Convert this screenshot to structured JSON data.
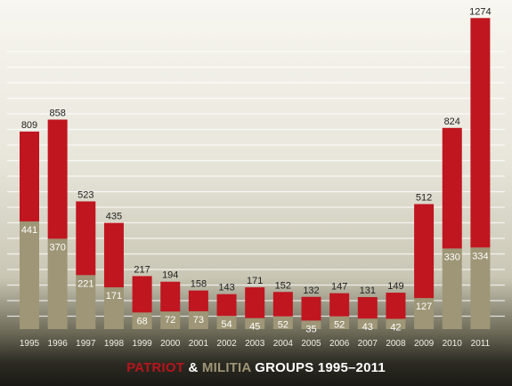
{
  "chart_data": {
    "type": "bar",
    "stacked": true,
    "title": {
      "segments": [
        {
          "text": "PATRIOT",
          "color": "#b8141d"
        },
        {
          "text": " & ",
          "color": "#ffffff"
        },
        {
          "text": "MILITIA",
          "color": "#9e9676"
        },
        {
          "text": " GROUPS 1995–2011",
          "color": "#ffffff"
        }
      ]
    },
    "categories": [
      "1995",
      "1996",
      "1997",
      "1998",
      "1999",
      "2000",
      "2001",
      "2002",
      "2003",
      "2004",
      "2005",
      "2006",
      "2007",
      "2008",
      "2009",
      "2010",
      "2011"
    ],
    "series": [
      {
        "name": "",
        "values": [
          441,
          370,
          221,
          171,
          68,
          72,
          73,
          54,
          45,
          52,
          35,
          52,
          43,
          42,
          127,
          330,
          334
        ]
      },
      {
        "name": "",
        "values": [
          368,
          488,
          302,
          264,
          149,
          122,
          85,
          89,
          126,
          100,
          97,
          95,
          88,
          107,
          385,
          494,
          940
        ]
      }
    ],
    "totals": [
      809,
      858,
      523,
      435,
      217,
      194,
      158,
      143,
      171,
      152,
      132,
      147,
      131,
      149,
      512,
      824,
      1274
    ],
    "ylim": [
      0,
      1300
    ],
    "grid": true,
    "colors": {
      "militia": "#9e9676",
      "patriot": "#c0161f",
      "gridline": "#ffffff"
    }
  }
}
